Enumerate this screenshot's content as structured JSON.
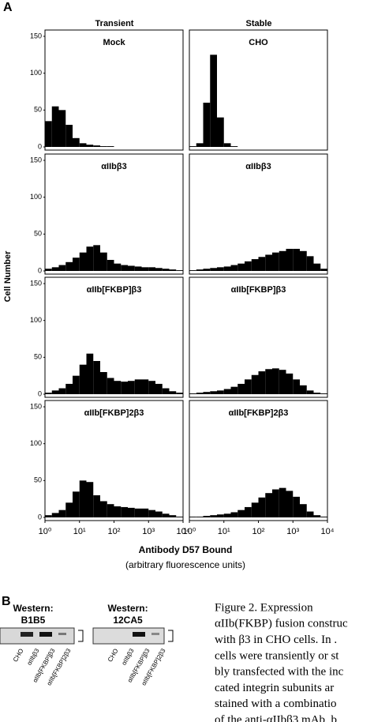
{
  "figure": {
    "panel_a_label": "A",
    "columns": [
      "Transient",
      "Stable"
    ],
    "y_label": "Cell Number",
    "x_label": "Antibody D57 Bound",
    "x_sublabel": "(arbitrary fluorescence units)",
    "panel_b_label": "B",
    "blots": [
      {
        "title": "Western:",
        "antibody": "B1B5",
        "lanes": [
          "CHO",
          "αIIbβ3",
          "αIIb[FKBP]β3",
          "αIIb[FKBP]2β3"
        ]
      },
      {
        "title": "Western:",
        "antibody": "12CA5",
        "lanes": [
          "CHO",
          "αIIbβ3",
          "αIIb[FKBP]β3",
          "αIIb[FKBP]2β3"
        ]
      }
    ],
    "caption": [
      "Figure 2. Expression",
      "αIIb(FKBP) fusion construc",
      "with β3 in CHO cells. In .",
      "cells were transiently or st",
      "bly transfected with the inc",
      "cated integrin subunits ar",
      "stained with a combinatio",
      "of the anti-αIIbβ3 mAb, b"
    ]
  },
  "chart_data": [
    {
      "type": "histogram",
      "title": "Mock",
      "color": "#000000",
      "log_x": true,
      "xlim": [
        1,
        10000
      ],
      "ylim": [
        0,
        150
      ],
      "yticks": [
        0,
        50,
        100,
        150
      ],
      "bins": [
        1,
        1.585,
        2.512,
        3.981,
        6.31,
        10,
        15.85,
        25.12,
        39.81,
        63.1,
        100,
        158.5,
        251.2,
        398.1,
        631,
        1000,
        1585,
        2512,
        3981,
        6310,
        10000
      ],
      "values": [
        35,
        55,
        50,
        30,
        12,
        5,
        3,
        2,
        1,
        1,
        0,
        0,
        0,
        0,
        0,
        0,
        0,
        0,
        0,
        0
      ]
    },
    {
      "type": "histogram",
      "title": "CHO",
      "color": "#000000",
      "log_x": true,
      "xlim": [
        1,
        10000
      ],
      "ylim": [
        0,
        150
      ],
      "bins": [
        1,
        1.585,
        2.512,
        3.981,
        6.31,
        10,
        15.85,
        25.12,
        39.81,
        63.1,
        100,
        158.5,
        251.2,
        398.1,
        631,
        1000,
        1585,
        2512,
        3981,
        6310,
        10000
      ],
      "values": [
        1,
        5,
        60,
        125,
        40,
        5,
        1,
        0,
        0,
        0,
        0,
        0,
        0,
        0,
        0,
        0,
        0,
        0,
        0,
        0
      ]
    },
    {
      "type": "histogram",
      "title": "αIIbβ3",
      "color": "#000000",
      "log_x": true,
      "xlim": [
        1,
        10000
      ],
      "ylim": [
        0,
        150
      ],
      "yticks": [
        0,
        50,
        100,
        150
      ],
      "bins": [
        1,
        1.585,
        2.512,
        3.981,
        6.31,
        10,
        15.85,
        25.12,
        39.81,
        63.1,
        100,
        158.5,
        251.2,
        398.1,
        631,
        1000,
        1585,
        2512,
        3981,
        6310,
        10000
      ],
      "values": [
        3,
        5,
        8,
        12,
        18,
        25,
        33,
        35,
        25,
        15,
        10,
        8,
        7,
        6,
        5,
        5,
        4,
        3,
        2,
        1
      ]
    },
    {
      "type": "histogram",
      "title": "αIIbβ3",
      "color": "#000000",
      "log_x": true,
      "xlim": [
        1,
        10000
      ],
      "ylim": [
        0,
        150
      ],
      "bins": [
        1,
        1.585,
        2.512,
        3.981,
        6.31,
        10,
        15.85,
        25.12,
        39.81,
        63.1,
        100,
        158.5,
        251.2,
        398.1,
        631,
        1000,
        1585,
        2512,
        3981,
        6310,
        10000
      ],
      "values": [
        1,
        2,
        3,
        4,
        5,
        6,
        8,
        10,
        13,
        16,
        19,
        22,
        25,
        27,
        30,
        30,
        27,
        20,
        10,
        3
      ]
    },
    {
      "type": "histogram",
      "title": "αIIb[FKBP]β3",
      "color": "#000000",
      "log_x": true,
      "xlim": [
        1,
        10000
      ],
      "ylim": [
        0,
        150
      ],
      "yticks": [
        0,
        50,
        100,
        150
      ],
      "bins": [
        1,
        1.585,
        2.512,
        3.981,
        6.31,
        10,
        15.85,
        25.12,
        39.81,
        63.1,
        100,
        158.5,
        251.2,
        398.1,
        631,
        1000,
        1585,
        2512,
        3981,
        6310,
        10000
      ],
      "values": [
        2,
        5,
        8,
        14,
        25,
        40,
        55,
        45,
        30,
        22,
        18,
        17,
        18,
        20,
        20,
        18,
        14,
        8,
        4,
        2
      ]
    },
    {
      "type": "histogram",
      "title": "αIIb[FKBP]β3",
      "color": "#000000",
      "log_x": true,
      "xlim": [
        1,
        10000
      ],
      "ylim": [
        0,
        150
      ],
      "bins": [
        1,
        1.585,
        2.512,
        3.981,
        6.31,
        10,
        15.85,
        25.12,
        39.81,
        63.1,
        100,
        158.5,
        251.2,
        398.1,
        631,
        1000,
        1585,
        2512,
        3981,
        6310,
        10000
      ],
      "values": [
        1,
        2,
        3,
        4,
        5,
        7,
        10,
        14,
        20,
        26,
        31,
        34,
        35,
        33,
        28,
        20,
        12,
        5,
        2,
        1
      ]
    },
    {
      "type": "histogram",
      "title": "αIIb[FKBP]2β3",
      "color": "#000000",
      "log_x": true,
      "xlim": [
        1,
        10000
      ],
      "ylim": [
        0,
        150
      ],
      "yticks": [
        0,
        50,
        100,
        150
      ],
      "xticks": [
        {
          "value": 1,
          "label": "10⁰"
        },
        {
          "value": 10,
          "label": "10¹"
        },
        {
          "value": 100,
          "label": "10²"
        },
        {
          "value": 1000,
          "label": "10³"
        },
        {
          "value": 10000,
          "label": "10⁴"
        }
      ],
      "bins": [
        1,
        1.585,
        2.512,
        3.981,
        6.31,
        10,
        15.85,
        25.12,
        39.81,
        63.1,
        100,
        158.5,
        251.2,
        398.1,
        631,
        1000,
        1585,
        2512,
        3981,
        6310,
        10000
      ],
      "values": [
        3,
        6,
        10,
        20,
        35,
        50,
        48,
        30,
        22,
        18,
        15,
        14,
        13,
        12,
        12,
        10,
        8,
        5,
        3,
        1
      ]
    },
    {
      "type": "histogram",
      "title": "αIIb[FKBP]2β3",
      "color": "#000000",
      "log_x": true,
      "xlim": [
        1,
        10000
      ],
      "ylim": [
        0,
        150
      ],
      "xticks": [
        {
          "value": 1,
          "label": "10⁰"
        },
        {
          "value": 10,
          "label": "10¹"
        },
        {
          "value": 100,
          "label": "10²"
        },
        {
          "value": 1000,
          "label": "10³"
        },
        {
          "value": 10000,
          "label": "10⁴"
        }
      ],
      "bins": [
        1,
        1.585,
        2.512,
        3.981,
        6.31,
        10,
        15.85,
        25.12,
        39.81,
        63.1,
        100,
        158.5,
        251.2,
        398.1,
        631,
        1000,
        1585,
        2512,
        3981,
        6310,
        10000
      ],
      "values": [
        1,
        1,
        2,
        3,
        4,
        5,
        7,
        10,
        14,
        20,
        27,
        33,
        38,
        40,
        36,
        28,
        18,
        8,
        3,
        1
      ]
    }
  ]
}
